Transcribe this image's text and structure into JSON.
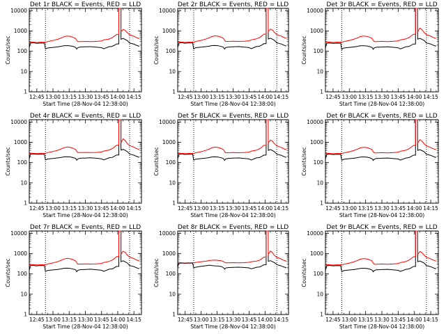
{
  "chart_data": {
    "type": "line",
    "layout": {
      "rows": 3,
      "cols": 3
    },
    "yscale": "log",
    "ylim": [
      1,
      13000
    ],
    "xlim": [
      "12:38",
      "14:22"
    ],
    "xticks": [
      "12:45",
      "13:00",
      "13:15",
      "13:30",
      "13:45",
      "14:00",
      "14:15"
    ],
    "yticks": [
      "1",
      "10",
      "100",
      "1000",
      "10000"
    ],
    "xlabel": "Start Time (28-Nov-04 12:38:00)",
    "ylabel": "Counts/sec",
    "series_colors": {
      "events": "#000000",
      "lld": "#ff0000"
    },
    "vlines_dotted": [
      "12:53",
      "14:11"
    ],
    "common_x": [
      "12:38",
      "12:39",
      "12:41",
      "12:43",
      "12:45",
      "12:47",
      "12:49",
      "12:51",
      "12:52",
      "12:53",
      "12:55",
      "13:00",
      "13:05",
      "13:08",
      "13:10",
      "13:13",
      "13:16",
      "13:19",
      "13:21",
      "13:22",
      "13:23",
      "13:25",
      "13:30",
      "13:35",
      "13:40",
      "13:45",
      "13:47",
      "13:52",
      "13:55",
      "13:57",
      "13:59",
      "14:03",
      "14:05",
      "14:07",
      "14:09",
      "14:11",
      "14:13",
      "14:15",
      "14:17",
      "14:20"
    ],
    "panels": [
      {
        "title": "Det 1r BLACK = Events, RED = LLD",
        "events": [
          150,
          250,
          262,
          255,
          248,
          252,
          255,
          252,
          262,
          130,
          145,
          155,
          165,
          178,
          188,
          190,
          185,
          170,
          155,
          128,
          150,
          162,
          165,
          168,
          160,
          150,
          132,
          168,
          175,
          200,
          230,
          390,
          430,
          380,
          330,
          255,
          240,
          225,
          200,
          175
        ],
        "lld": [
          260,
          275,
          280,
          275,
          268,
          275,
          280,
          275,
          280,
          275,
          300,
          340,
          400,
          460,
          520,
          560,
          540,
          480,
          420,
          340,
          300,
          300,
          305,
          300,
          305,
          320,
          360,
          400,
          470,
          560,
          680,
          900,
          1200,
          1050,
          800,
          650,
          600,
          550,
          480,
          420
        ],
        "gap": [
          "14:01",
          "14:03"
        ]
      },
      {
        "title": "Det 2r BLACK = Events, RED = LLD",
        "events": [
          150,
          248,
          265,
          260,
          250,
          255,
          258,
          255,
          265,
          130,
          150,
          160,
          170,
          180,
          190,
          192,
          188,
          172,
          158,
          128,
          150,
          160,
          165,
          170,
          162,
          152,
          135,
          170,
          178,
          205,
          235,
          400,
          440,
          390,
          340,
          262,
          245,
          230,
          205,
          180
        ],
        "lld": [
          265,
          280,
          285,
          280,
          272,
          278,
          282,
          278,
          285,
          278,
          305,
          345,
          410,
          470,
          530,
          575,
          550,
          490,
          430,
          350,
          305,
          305,
          310,
          305,
          310,
          325,
          365,
          410,
          480,
          580,
          700,
          920,
          1250,
          1100,
          820,
          670,
          610,
          560,
          490,
          430
        ],
        "gap": [
          "14:01",
          "14:03"
        ]
      },
      {
        "title": "Det 3r BLACK = Events, RED = LLD",
        "events": [
          145,
          245,
          258,
          252,
          245,
          250,
          252,
          250,
          258,
          125,
          145,
          155,
          165,
          176,
          186,
          188,
          183,
          168,
          153,
          125,
          148,
          158,
          162,
          166,
          158,
          148,
          130,
          165,
          172,
          198,
          228,
          395,
          435,
          385,
          335,
          258,
          242,
          228,
          202,
          178
        ],
        "lld": [
          262,
          278,
          282,
          278,
          270,
          275,
          280,
          276,
          282,
          276,
          302,
          342,
          405,
          465,
          525,
          565,
          545,
          485,
          425,
          345,
          302,
          302,
          308,
          302,
          308,
          322,
          362,
          405,
          475,
          570,
          690,
          910,
          1400,
          1150,
          830,
          660,
          605,
          555,
          485,
          425
        ],
        "gap": [
          "14:01",
          "14:03"
        ]
      },
      {
        "title": "Det 4r BLACK = Events, RED = LLD",
        "events": [
          150,
          255,
          268,
          262,
          255,
          258,
          262,
          258,
          268,
          135,
          150,
          160,
          172,
          182,
          192,
          194,
          190,
          174,
          160,
          130,
          152,
          164,
          168,
          172,
          164,
          154,
          136,
          172,
          180,
          208,
          238,
          410,
          450,
          400,
          345,
          265,
          248,
          232,
          208,
          182
        ],
        "lld": [
          270,
          285,
          290,
          285,
          278,
          284,
          288,
          284,
          290,
          284,
          310,
          350,
          415,
          480,
          545,
          590,
          560,
          500,
          440,
          355,
          310,
          310,
          315,
          310,
          315,
          330,
          370,
          415,
          490,
          590,
          720,
          950,
          1500,
          1200,
          850,
          690,
          630,
          575,
          500,
          440
        ],
        "gap": [
          "14:01",
          "14:03"
        ]
      },
      {
        "title": "Det 5r BLACK = Events, RED = LLD",
        "events": [
          150,
          252,
          265,
          260,
          252,
          256,
          260,
          256,
          265,
          132,
          148,
          158,
          168,
          180,
          190,
          192,
          187,
          172,
          157,
          128,
          150,
          162,
          166,
          170,
          162,
          152,
          134,
          170,
          178,
          204,
          234,
          400,
          440,
          390,
          340,
          260,
          244,
          230,
          205,
          180
        ],
        "lld": [
          268,
          282,
          288,
          282,
          275,
          280,
          285,
          280,
          288,
          280,
          305,
          345,
          410,
          470,
          535,
          580,
          552,
          492,
          432,
          350,
          305,
          305,
          312,
          305,
          312,
          326,
          366,
          410,
          482,
          578,
          705,
          930,
          1300,
          1120,
          830,
          675,
          615,
          562,
          492,
          432
        ],
        "gap": [
          "14:01",
          "14:03"
        ]
      },
      {
        "title": "Det 6r BLACK = Events, RED = LLD",
        "events": [
          148,
          250,
          262,
          256,
          250,
          254,
          258,
          254,
          262,
          130,
          146,
          156,
          166,
          178,
          188,
          190,
          186,
          170,
          155,
          127,
          148,
          160,
          164,
          168,
          160,
          150,
          132,
          168,
          176,
          202,
          232,
          398,
          438,
          388,
          338,
          258,
          242,
          228,
          203,
          178
        ],
        "lld": [
          265,
          280,
          285,
          280,
          272,
          278,
          282,
          278,
          285,
          278,
          302,
          342,
          405,
          468,
          530,
          572,
          548,
          488,
          428,
          346,
          302,
          302,
          308,
          302,
          308,
          322,
          362,
          405,
          478,
          572,
          698,
          920,
          1350,
          1130,
          825,
          668,
          610,
          558,
          488,
          428
        ],
        "gap": [
          "14:01",
          "14:03"
        ]
      },
      {
        "title": "Det 7r BLACK = Events, RED = LLD",
        "events": [
          150,
          252,
          265,
          258,
          250,
          255,
          258,
          255,
          265,
          132,
          148,
          158,
          168,
          180,
          190,
          192,
          188,
          172,
          157,
          128,
          150,
          162,
          166,
          170,
          162,
          152,
          134,
          170,
          178,
          204,
          234,
          402,
          442,
          392,
          342,
          262,
          245,
          230,
          205,
          180
        ],
        "lld": [
          268,
          283,
          288,
          283,
          275,
          281,
          285,
          281,
          288,
          281,
          306,
          346,
          412,
          475,
          540,
          585,
          556,
          496,
          436,
          352,
          306,
          306,
          312,
          306,
          312,
          328,
          368,
          412,
          485,
          582,
          710,
          940,
          1320,
          1130,
          835,
          680,
          620,
          565,
          495,
          435
        ],
        "gap": [
          "14:01",
          "14:03"
        ]
      },
      {
        "title": "Det 8r BLACK = Events, RED = LLD",
        "events": [
          210,
          330,
          345,
          338,
          330,
          335,
          338,
          335,
          345,
          200,
          215,
          235,
          255,
          270,
          260,
          250,
          245,
          230,
          205,
          170,
          195,
          205,
          210,
          215,
          208,
          198,
          178,
          212,
          222,
          250,
          285,
          420,
          450,
          400,
          355,
          290,
          270,
          250,
          225,
          200
        ],
        "lld": [
          330,
          350,
          360,
          352,
          345,
          350,
          355,
          352,
          360,
          352,
          370,
          400,
          430,
          460,
          470,
          480,
          460,
          440,
          410,
          370,
          352,
          352,
          358,
          352,
          358,
          372,
          400,
          430,
          480,
          560,
          680,
          900,
          1350,
          1100,
          800,
          650,
          600,
          550,
          480,
          420
        ],
        "gap": [
          "14:01",
          "14:03"
        ]
      },
      {
        "title": "Det 9r BLACK = Events, RED = LLD",
        "events": [
          148,
          250,
          262,
          256,
          250,
          254,
          258,
          254,
          262,
          130,
          146,
          156,
          166,
          178,
          188,
          190,
          186,
          170,
          155,
          127,
          148,
          160,
          164,
          168,
          160,
          150,
          132,
          168,
          176,
          202,
          232,
          398,
          438,
          388,
          338,
          258,
          242,
          228,
          203,
          178
        ],
        "lld": [
          265,
          280,
          285,
          280,
          272,
          278,
          282,
          278,
          285,
          278,
          302,
          342,
          405,
          468,
          530,
          572,
          548,
          488,
          428,
          346,
          302,
          302,
          308,
          302,
          308,
          322,
          362,
          405,
          478,
          572,
          698,
          920,
          1280,
          1110,
          820,
          665,
          608,
          556,
          486,
          426
        ],
        "gap": [
          "14:01",
          "14:03"
        ]
      }
    ]
  }
}
